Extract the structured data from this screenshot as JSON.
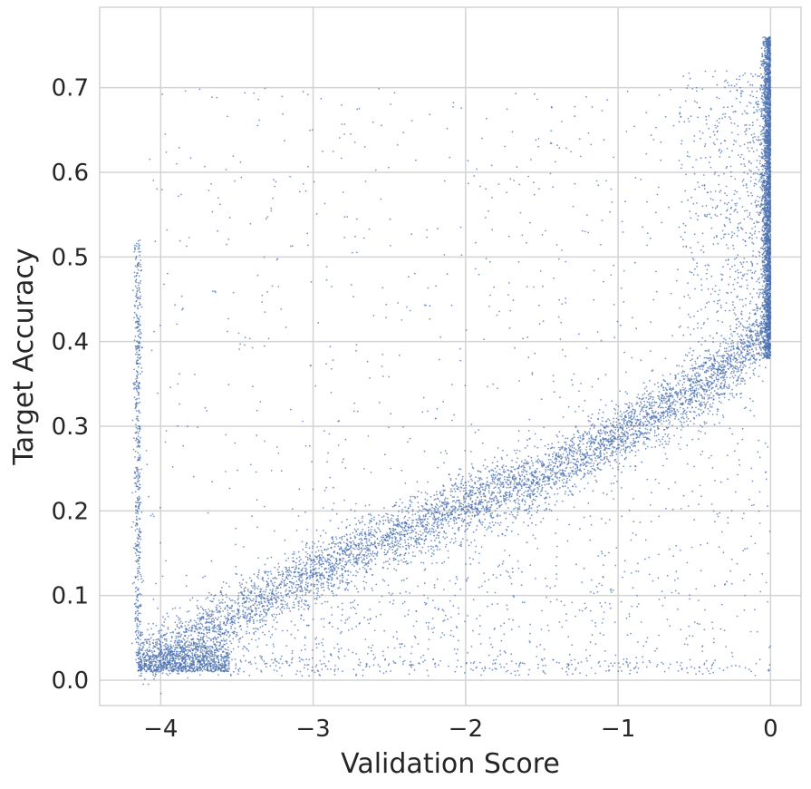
{
  "chart_data": {
    "type": "scatter",
    "title": "",
    "xlabel": "Validation Score",
    "ylabel": "Target Accuracy",
    "xlim": [
      -4.4,
      0.2
    ],
    "ylim": [
      -0.03,
      0.795
    ],
    "grid": true,
    "legend": "none",
    "point_color": "#4c72b0",
    "xticks": [
      -4,
      -3,
      -2,
      -1,
      0
    ],
    "xtick_labels": [
      "−4",
      "−3",
      "−2",
      "−1",
      "0"
    ],
    "yticks": [
      0.0,
      0.1,
      0.2,
      0.3,
      0.4,
      0.5,
      0.6,
      0.7
    ],
    "ytick_labels": [
      "0.0",
      "0.1",
      "0.2",
      "0.3",
      "0.4",
      "0.5",
      "0.6",
      "0.7"
    ],
    "series": [
      {
        "points_summary": "Dense band of points rising from about (-4.15, 0.02) to (0, 0.40), then a vertical cluster at x≈0 spanning 0.38–0.76; a faint vertical strip at x≈-4.15 spanning 0.02–0.52; sparse scattered points across the upper region and along the bottom near y≈0.01",
        "band_trend": [
          {
            "x": -4.15,
            "y": 0.02
          },
          {
            "x": -3.5,
            "y": 0.08
          },
          {
            "x": -3.0,
            "y": 0.13
          },
          {
            "x": -2.5,
            "y": 0.17
          },
          {
            "x": -2.0,
            "y": 0.21
          },
          {
            "x": -1.5,
            "y": 0.24
          },
          {
            "x": -1.0,
            "y": 0.29
          },
          {
            "x": -0.5,
            "y": 0.34
          },
          {
            "x": -0.2,
            "y": 0.38
          },
          {
            "x": 0.0,
            "y": 0.42
          }
        ],
        "vertical_cluster_x0": {
          "x": 0.0,
          "y_range": [
            0.38,
            0.76
          ]
        },
        "vertical_strip_left": {
          "x": -4.15,
          "y_range": [
            0.02,
            0.52
          ]
        }
      }
    ]
  }
}
